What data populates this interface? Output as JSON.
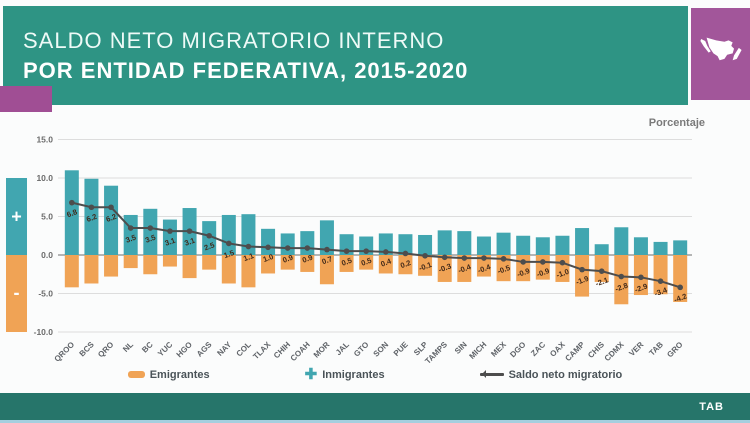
{
  "header": {
    "title_line1": "SALDO NETO MIGRATORIO INTERNO",
    "title_line2": "POR ENTIDAD FEDERATIVA, 2015-2020"
  },
  "footer": {
    "page_label": "TAB"
  },
  "axis_indicator": {
    "plus": "+",
    "minus": "-"
  },
  "colors": {
    "header_teal": "#2E9484",
    "footer_teal": "#26756A",
    "accent_purple": "#A2569A",
    "bar_teal": "#41A6B0",
    "bar_orange": "#F0A355",
    "line_dark": "#4D4D4D",
    "data_label_brown": "#40291A",
    "grid_gray": "#DDDDDD",
    "zero_line_gray": "#8A8A8A",
    "axis_text_gray": "#6B6B6B",
    "bottom_strip_blue": "#A5CFDF"
  },
  "chart_data": {
    "type": "bar",
    "subtype": "diverging bars with net line overlay",
    "title": "Saldo neto migratorio interno por entidad federativa, 2015-2020",
    "unit_label": "Porcentaje",
    "xlabel": "",
    "ylabel": "Porcentaje",
    "ylim": [
      -10,
      15
    ],
    "yticks": [
      15,
      10,
      5,
      0,
      -5,
      -10
    ],
    "grid": true,
    "legend_position": "bottom",
    "categories": [
      "QROO",
      "BCS",
      "QRO",
      "NL",
      "BC",
      "YUC",
      "HGO",
      "AGS",
      "NAY",
      "COL",
      "TLAX",
      "CHIH",
      "COAH",
      "MOR",
      "JAL",
      "GTO",
      "SON",
      "PUE",
      "SLP",
      "TAMPS",
      "SIN",
      "MICH",
      "MEX",
      "DGO",
      "ZAC",
      "OAX",
      "CAMP",
      "CHIS",
      "CDMX",
      "VER",
      "TAB",
      "GRO"
    ],
    "series": [
      {
        "name": "Inmigrantes",
        "direction": "up",
        "color": "#41A6B0",
        "values": [
          11.0,
          9.9,
          9.0,
          5.2,
          6.0,
          4.6,
          6.1,
          4.4,
          5.2,
          5.3,
          3.4,
          2.8,
          3.1,
          4.5,
          2.7,
          2.4,
          2.8,
          2.7,
          2.6,
          3.2,
          3.1,
          2.4,
          2.9,
          2.5,
          2.3,
          2.5,
          3.5,
          1.4,
          3.6,
          2.3,
          1.7,
          1.9
        ]
      },
      {
        "name": "Emigrantes",
        "direction": "down",
        "color": "#F0A355",
        "values": [
          4.2,
          3.7,
          2.8,
          1.7,
          2.5,
          1.5,
          3.0,
          1.9,
          3.7,
          4.2,
          2.4,
          1.9,
          2.2,
          3.8,
          2.2,
          1.9,
          2.4,
          2.5,
          2.7,
          3.5,
          3.5,
          2.8,
          3.4,
          3.4,
          3.2,
          3.5,
          5.4,
          3.5,
          6.4,
          5.2,
          5.1,
          6.1
        ]
      },
      {
        "name": "Saldo neto migratorio",
        "type": "line",
        "color": "#4D4D4D",
        "labeled": true,
        "values": [
          6.8,
          6.2,
          6.2,
          3.5,
          3.5,
          3.1,
          3.1,
          2.5,
          1.5,
          1.1,
          1.0,
          0.9,
          0.9,
          0.7,
          0.5,
          0.5,
          0.4,
          0.2,
          -0.1,
          -0.3,
          -0.4,
          -0.4,
          -0.5,
          -0.9,
          -0.9,
          -1.0,
          -1.9,
          -2.1,
          -2.8,
          -2.9,
          -3.4,
          -4.2
        ]
      }
    ]
  }
}
